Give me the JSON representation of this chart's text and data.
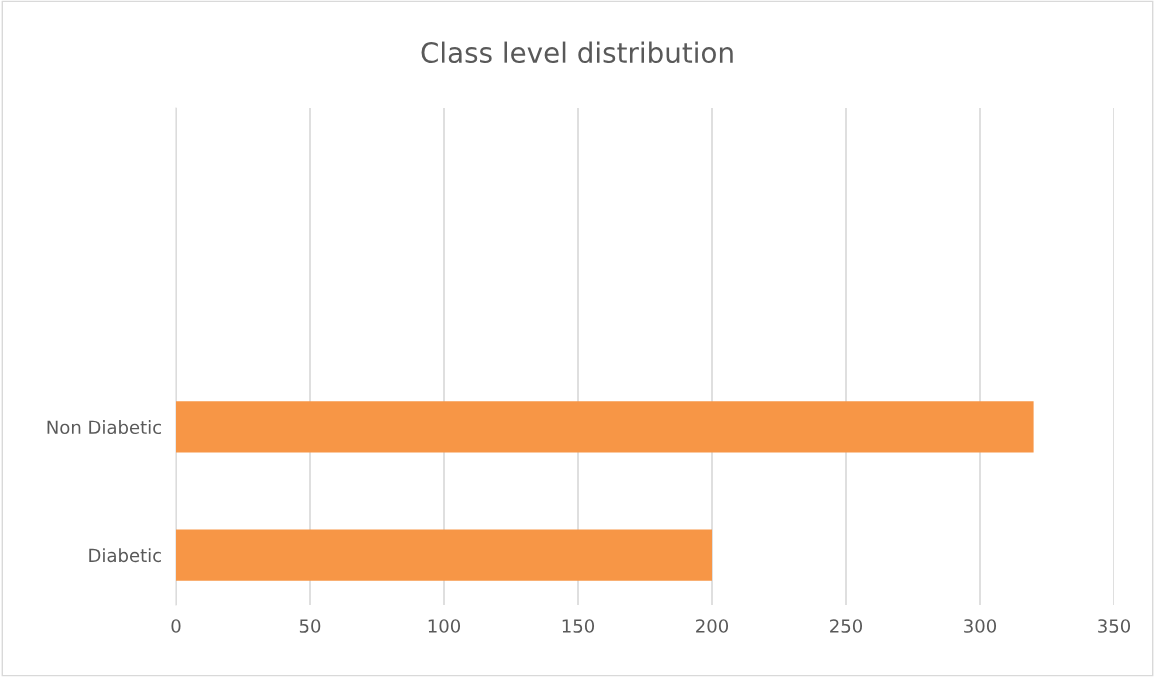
{
  "chart_data": {
    "type": "bar",
    "orientation": "horizontal",
    "title": "Class level distribution",
    "categories": [
      "Non Diabetic",
      "Diabetic"
    ],
    "values": [
      320,
      200
    ],
    "color": "#f79646",
    "xlim": [
      0,
      350
    ],
    "xticks": [
      0,
      50,
      100,
      150,
      200,
      250,
      300,
      350
    ],
    "grid": "x"
  }
}
